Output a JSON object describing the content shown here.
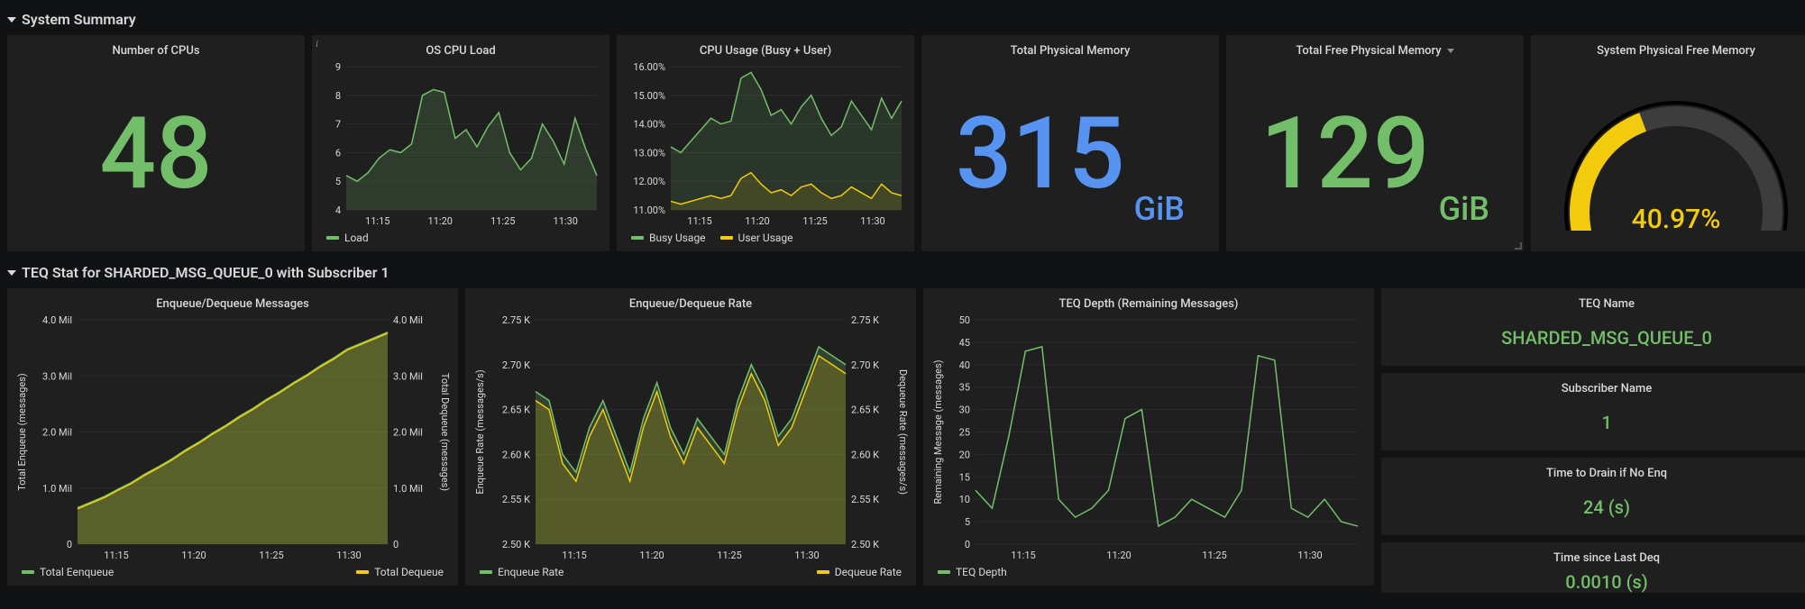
{
  "colors": {
    "bg": "#111214",
    "panel": "#1f1f20",
    "text": "#d8d9da",
    "green": "#73bf69",
    "blue": "#5794f2",
    "yellow": "#f2cc0c",
    "olive": "#c8b24a",
    "grid": "#2c2c2c",
    "axis": "#464646"
  },
  "section1": {
    "title": "System Summary",
    "cpu_count": {
      "title": "Number of CPUs",
      "value": "48",
      "color": "#73bf69"
    },
    "os_cpu_load": {
      "title": "OS CPU Load",
      "type": "line",
      "ylim": [
        4,
        9
      ],
      "yticks": [
        4,
        5,
        6,
        7,
        8,
        9
      ],
      "xticks": [
        "11:15",
        "11:20",
        "11:25",
        "11:30"
      ],
      "series": [
        {
          "name": "Load",
          "color": "#73bf69",
          "fill": "rgba(115,191,105,0.18)",
          "values": [
            5.2,
            5.0,
            5.3,
            5.8,
            6.1,
            6.0,
            6.3,
            8.0,
            8.2,
            8.1,
            6.5,
            6.8,
            6.2,
            6.9,
            7.4,
            6.0,
            5.4,
            5.8,
            7.0,
            6.4,
            5.6,
            7.2,
            6.1,
            5.2
          ]
        }
      ],
      "legend": [
        "Load"
      ]
    },
    "cpu_usage": {
      "title": "CPU Usage (Busy + User)",
      "type": "line",
      "ylim": [
        11,
        16
      ],
      "yticks_labels": [
        "11.00%",
        "12.00%",
        "13.00%",
        "14.00%",
        "15.00%",
        "16.00%"
      ],
      "yticks": [
        11,
        12,
        13,
        14,
        15,
        16
      ],
      "xticks": [
        "11:15",
        "11:20",
        "11:25",
        "11:30"
      ],
      "series": [
        {
          "name": "Busy Usage",
          "color": "#73bf69",
          "fill": "rgba(115,191,105,0.15)",
          "values": [
            13.2,
            13.0,
            13.4,
            13.8,
            14.2,
            14.0,
            14.1,
            15.6,
            15.8,
            15.2,
            14.3,
            14.5,
            14.0,
            14.6,
            15.0,
            14.2,
            13.6,
            13.9,
            14.8,
            14.3,
            13.8,
            14.9,
            14.2,
            14.8
          ]
        },
        {
          "name": "User Usage",
          "color": "#f2cc0c",
          "fill": "rgba(242,204,12,0.12)",
          "values": [
            11.3,
            11.2,
            11.3,
            11.4,
            11.5,
            11.4,
            11.5,
            12.1,
            12.3,
            11.9,
            11.6,
            11.7,
            11.5,
            11.8,
            11.9,
            11.6,
            11.4,
            11.5,
            11.8,
            11.6,
            11.4,
            11.9,
            11.6,
            11.5
          ]
        }
      ],
      "legend": [
        "Busy Usage",
        "User Usage"
      ]
    },
    "total_mem": {
      "title": "Total Physical Memory",
      "value": "315",
      "unit": "GiB",
      "color": "#5794f2"
    },
    "free_mem": {
      "title": "Total Free Physical Memory",
      "value": "129",
      "unit": "GiB",
      "color": "#73bf69",
      "dropdown": true
    },
    "gauge": {
      "title": "System Physical Free Memory",
      "value": "40.97%",
      "pct": 40.97,
      "color": "#f2cc0c",
      "track": "#3d3d3d"
    }
  },
  "section2": {
    "title": "TEQ Stat for SHARDED_MSG_QUEUE_0 with Subscriber 1",
    "msgs": {
      "title": "Enqueue/Dequeue Messages",
      "ylim": [
        0,
        4.0
      ],
      "yticks": [
        0,
        1.0,
        2.0,
        3.0,
        4.0
      ],
      "ytick_labels": [
        "0",
        "1.0 Mil",
        "2.0 Mil",
        "3.0 Mil",
        "4.0 Mil"
      ],
      "ylabel_left": "Total Enqueue (messages)",
      "ylabel_right": "Total Dequeue (messages)",
      "xticks": [
        "11:15",
        "11:20",
        "11:25",
        "11:30"
      ],
      "series": [
        {
          "name": "Total Eenqueue",
          "color": "#73bf69",
          "fill": "rgba(115,191,105,0.25)",
          "values": [
            0.65,
            0.75,
            0.85,
            0.98,
            1.1,
            1.25,
            1.38,
            1.52,
            1.68,
            1.82,
            1.98,
            2.12,
            2.28,
            2.42,
            2.58,
            2.72,
            2.88,
            3.02,
            3.18,
            3.32,
            3.48,
            3.58,
            3.68,
            3.78
          ]
        },
        {
          "name": "Total Dequeue",
          "color": "#f2cc0c",
          "fill": "rgba(242,204,12,0.20)",
          "values": [
            0.63,
            0.73,
            0.83,
            0.96,
            1.08,
            1.23,
            1.36,
            1.5,
            1.66,
            1.8,
            1.96,
            2.1,
            2.26,
            2.4,
            2.56,
            2.7,
            2.86,
            3.0,
            3.16,
            3.3,
            3.46,
            3.56,
            3.66,
            3.76
          ]
        }
      ],
      "legend_left": "Total Eenqueue",
      "legend_right": "Total Dequeue"
    },
    "rate": {
      "title": "Enqueue/Dequeue Rate",
      "ylim": [
        2.5,
        2.75
      ],
      "yticks": [
        2.5,
        2.55,
        2.6,
        2.65,
        2.7,
        2.75
      ],
      "ytick_labels": [
        "2.50 K",
        "2.55 K",
        "2.60 K",
        "2.65 K",
        "2.70 K",
        "2.75 K"
      ],
      "ylabel_left": "Enqueue Rate (messages/s)",
      "ylabel_right": "Dequeue Rate (messages/s)",
      "xticks": [
        "11:15",
        "11:20",
        "11:25",
        "11:30"
      ],
      "series": [
        {
          "name": "Enqueue Rate",
          "color": "#73bf69",
          "fill": "rgba(115,191,105,0.22)",
          "values": [
            2.67,
            2.66,
            2.6,
            2.58,
            2.63,
            2.66,
            2.62,
            2.58,
            2.64,
            2.68,
            2.63,
            2.6,
            2.64,
            2.62,
            2.6,
            2.66,
            2.7,
            2.67,
            2.62,
            2.64,
            2.68,
            2.72,
            2.71,
            2.7
          ]
        },
        {
          "name": "Dequeue Rate",
          "color": "#f2cc0c",
          "fill": "rgba(242,204,12,0.18)",
          "values": [
            2.66,
            2.65,
            2.59,
            2.57,
            2.62,
            2.65,
            2.61,
            2.57,
            2.63,
            2.67,
            2.62,
            2.59,
            2.63,
            2.61,
            2.59,
            2.65,
            2.69,
            2.66,
            2.61,
            2.63,
            2.67,
            2.71,
            2.7,
            2.69
          ]
        }
      ],
      "legend_left": "Enqueue Rate",
      "legend_right": "Dequeue Rate"
    },
    "depth": {
      "title": "TEQ Depth (Remaining Messages)",
      "ylim": [
        0,
        50
      ],
      "yticks": [
        0,
        5,
        10,
        15,
        20,
        25,
        30,
        35,
        40,
        45,
        50
      ],
      "ylabel_left": "Remaining Message (messages)",
      "xticks": [
        "11:15",
        "11:20",
        "11:25",
        "11:30"
      ],
      "series": [
        {
          "name": "TEQ Depth",
          "color": "#73bf69",
          "fill": "none",
          "values": [
            12,
            8,
            24,
            43,
            44,
            10,
            6,
            8,
            12,
            28,
            30,
            4,
            6,
            10,
            8,
            6,
            12,
            42,
            41,
            8,
            6,
            10,
            5,
            4
          ]
        }
      ],
      "legend_left": "TEQ Depth"
    },
    "stats": [
      {
        "title": "TEQ Name",
        "value": "SHARDED_MSG_QUEUE_0",
        "color": "#73bf69"
      },
      {
        "title": "Subscriber Name",
        "value": "1",
        "color": "#73bf69"
      },
      {
        "title": "Time to Drain if No Enq",
        "value": "24 (s)",
        "color": "#73bf69"
      },
      {
        "title": "Time since Last Deq",
        "value": "0.0010 (s)",
        "color": "#73bf69"
      }
    ]
  }
}
